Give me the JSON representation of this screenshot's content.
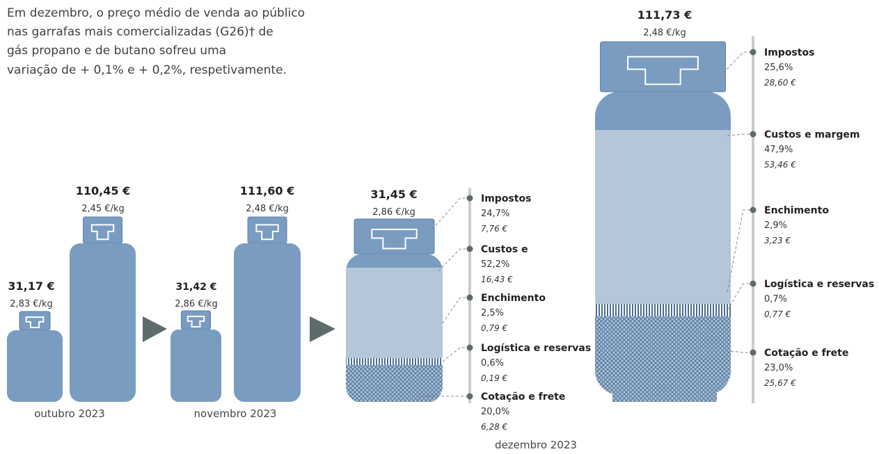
{
  "intro": [
    "Em dezembro, o preço médio de venda ao público",
    "nas garrafas mais comercializadas (G26)† de",
    "gás propano e de butano sofreu uma",
    "variação de + 0,1% e + 0,2%, respetivamente."
  ],
  "october": {
    "label": "outubro 2023",
    "small": {
      "price": "31,17 €",
      "per_kg": "2,83 €/kg"
    },
    "large": {
      "price": "110,45 €",
      "per_kg": "2,45 €/kg"
    }
  },
  "november": {
    "label": "novembro 2023",
    "small": {
      "price": "31,42 €",
      "per_kg": "2,86 €/kg"
    },
    "large": {
      "price": "111,60 €",
      "per_kg": "2,48 €/kg"
    }
  },
  "december": {
    "label": "dezembro 2023",
    "small": {
      "price": "31,45 €",
      "per_kg": "2,86 €/kg",
      "components": [
        {
          "name": "Impostos",
          "share": "24,7%",
          "amount": "7,76 €"
        },
        {
          "name": "Custos e",
          "share": "52,2%",
          "amount": "16,43 €"
        },
        {
          "name": "Enchimento",
          "share": "2,5%",
          "amount": "0,79 €"
        },
        {
          "name": "Logística e reservas",
          "share": "0,6%",
          "amount": "0,19 €"
        },
        {
          "name": "Cotação e frete",
          "share": "20,0%",
          "amount": "6,28 €"
        }
      ]
    },
    "large": {
      "price": "111,73 €",
      "per_kg": "2,48 €/kg",
      "components": [
        {
          "name": "Impostos",
          "share": "25,6%",
          "amount": "28,60 €"
        },
        {
          "name": "Custos e margem",
          "share": "47,9%",
          "amount": "53,46 €"
        },
        {
          "name": "Enchimento",
          "share": "2,9%",
          "amount": "3,23 €"
        },
        {
          "name": "Logística e reservas",
          "share": "0,7%",
          "amount": "0,77 €"
        },
        {
          "name": "Cotação e frete",
          "share": "23,0%",
          "amount": "25,67 €"
        }
      ]
    }
  }
}
